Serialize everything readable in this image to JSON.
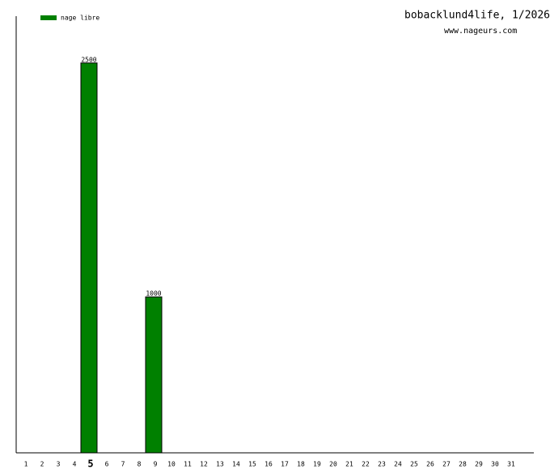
{
  "chart_data": {
    "type": "bar",
    "title": "bobacklund4life, 1/2026",
    "subtitle": "www.nageurs.com",
    "categories": [
      "1",
      "2",
      "3",
      "4",
      "5",
      "6",
      "7",
      "8",
      "9",
      "10",
      "11",
      "12",
      "13",
      "14",
      "15",
      "16",
      "17",
      "18",
      "19",
      "20",
      "21",
      "22",
      "23",
      "24",
      "25",
      "26",
      "27",
      "28",
      "29",
      "30",
      "31"
    ],
    "highlight_category": "5",
    "series": [
      {
        "name": "nage libre",
        "color": "#008000",
        "values": [
          null,
          null,
          null,
          null,
          2500,
          null,
          null,
          null,
          1000,
          null,
          null,
          null,
          null,
          null,
          null,
          null,
          null,
          null,
          null,
          null,
          null,
          null,
          null,
          null,
          null,
          null,
          null,
          null,
          null,
          null,
          null
        ]
      }
    ],
    "ylim": [
      0,
      2800
    ]
  }
}
